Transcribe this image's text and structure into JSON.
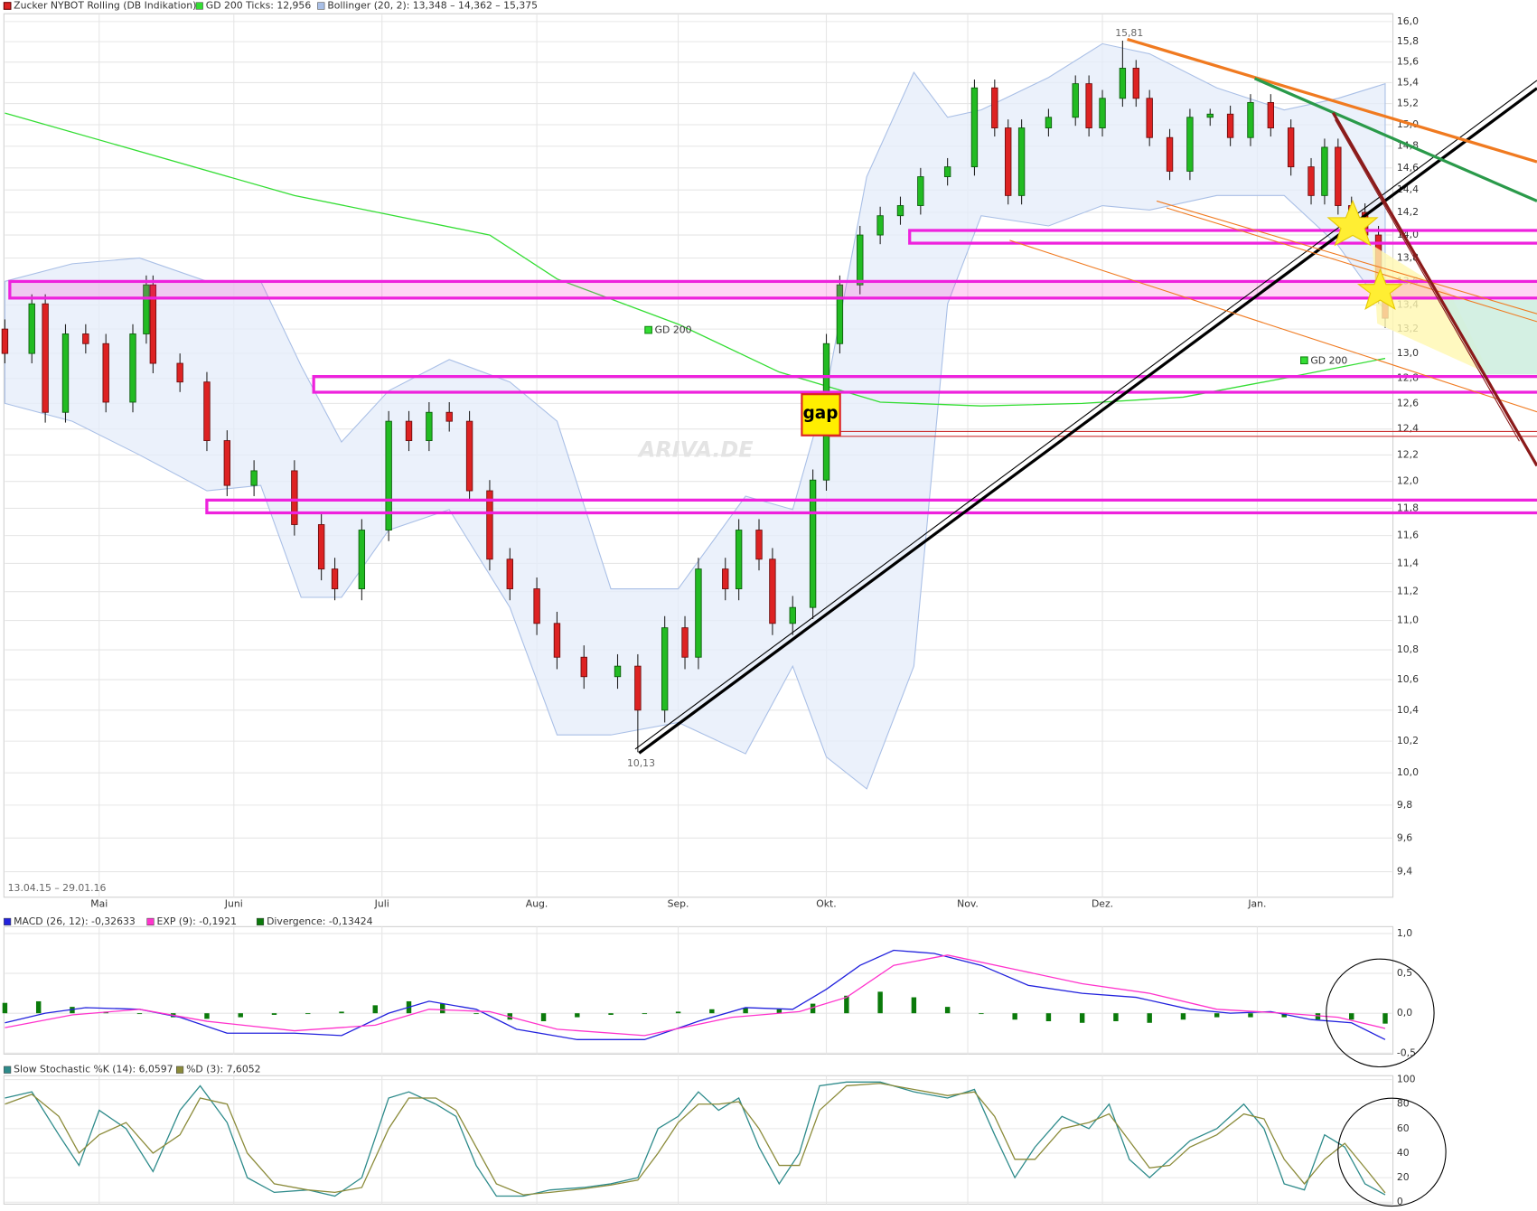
{
  "chart_data": [
    {
      "type": "candlestick",
      "title": "Zucker NYBOT Rolling (DB Indikation)",
      "period": "13.04.15 – 29.01.16",
      "watermark": "ARIVA.DE",
      "annotations": [
        "15,81",
        "10,13",
        "gap",
        "GD 200",
        "GD 200"
      ],
      "log": true,
      "grid": true,
      "colors": {
        "up": "#22bb22",
        "down": "#dd2222"
      },
      "xlim": [
        0,
        206
      ],
      "xticks": [
        {
          "value": 14,
          "label": "Mai"
        },
        {
          "value": 34,
          "label": "Juni"
        },
        {
          "value": 56,
          "label": "Juli"
        },
        {
          "value": 79,
          "label": "Aug."
        },
        {
          "value": 100,
          "label": "Sep."
        },
        {
          "value": 122,
          "label": "Okt."
        },
        {
          "value": 143,
          "label": "Nov."
        },
        {
          "value": 163,
          "label": "Dez."
        },
        {
          "value": 186,
          "label": "Jan."
        }
      ],
      "ylim": [
        9.4,
        16.0
      ],
      "yticks": [
        {
          "value": 9.4,
          "label": "9,4"
        },
        {
          "value": 9.6,
          "label": "9,6"
        },
        {
          "value": 9.8,
          "label": "9,8"
        },
        {
          "value": 10.0,
          "label": "10,0"
        },
        {
          "value": 10.2,
          "label": "10,2"
        },
        {
          "value": 10.4,
          "label": "10,4"
        },
        {
          "value": 10.6,
          "label": "10,6"
        },
        {
          "value": 10.8,
          "label": "10,8"
        },
        {
          "value": 11.0,
          "label": "11,0"
        },
        {
          "value": 11.2,
          "label": "11,2"
        },
        {
          "value": 11.4,
          "label": "11,4"
        },
        {
          "value": 11.6,
          "label": "11,6"
        },
        {
          "value": 11.8,
          "label": "11,8"
        },
        {
          "value": 12.0,
          "label": "12,0"
        },
        {
          "value": 12.2,
          "label": "12,2"
        },
        {
          "value": 12.4,
          "label": "12,4"
        },
        {
          "value": 12.6,
          "label": "12,6"
        },
        {
          "value": 12.8,
          "label": "12,8"
        },
        {
          "value": 13.0,
          "label": "13,0"
        },
        {
          "value": 13.2,
          "label": "13,2"
        },
        {
          "value": 13.4,
          "label": "13,4"
        },
        {
          "value": 13.6,
          "label": "13,6"
        },
        {
          "value": 13.8,
          "label": "13,8"
        },
        {
          "value": 14.0,
          "label": "14,0"
        },
        {
          "value": 14.2,
          "label": "14,2"
        },
        {
          "value": 14.4,
          "label": "14,4"
        },
        {
          "value": 14.6,
          "label": "14,6"
        },
        {
          "value": 14.8,
          "label": "14,8"
        },
        {
          "value": 15.0,
          "label": "15,0"
        },
        {
          "value": 15.2,
          "label": "15,2"
        },
        {
          "value": 15.4,
          "label": "15,4"
        },
        {
          "value": 15.6,
          "label": "15,6"
        },
        {
          "value": 15.8,
          "label": "15,8"
        },
        {
          "value": 16.0,
          "label": "16,0"
        }
      ],
      "x": [
        0,
        4,
        6,
        9,
        12,
        15,
        19,
        21,
        22,
        26,
        30,
        33,
        37,
        43,
        47,
        49,
        53,
        57,
        60,
        63,
        66,
        69,
        72,
        75,
        79,
        82,
        86,
        91,
        94,
        98,
        101,
        103,
        107,
        109,
        112,
        114,
        117,
        120,
        122,
        124,
        127,
        130,
        133,
        136,
        140,
        144,
        147,
        149,
        151,
        155,
        159,
        161,
        163,
        166,
        168,
        170,
        173,
        176,
        179,
        182,
        185,
        188,
        191,
        194,
        196,
        198,
        200,
        202,
        204,
        205
      ],
      "open": [
        13.2,
        13.0,
        13.41,
        12.53,
        13.16,
        13.08,
        12.61,
        13.16,
        13.57,
        12.92,
        12.77,
        12.31,
        11.97,
        12.08,
        11.68,
        11.36,
        11.22,
        11.64,
        12.46,
        12.31,
        12.53,
        12.46,
        11.93,
        11.43,
        11.22,
        10.98,
        10.75,
        10.62,
        10.69,
        10.4,
        10.95,
        10.75,
        11.36,
        11.22,
        11.64,
        11.43,
        10.98,
        11.09,
        12.01,
        13.08,
        13.57,
        14.0,
        14.17,
        14.26,
        14.52,
        14.61,
        15.35,
        14.97,
        14.35,
        14.97,
        15.07,
        15.39,
        14.97,
        15.25,
        15.54,
        15.25,
        14.88,
        14.57,
        15.07,
        15.1,
        14.88,
        15.21,
        14.97,
        14.61,
        14.35,
        14.79,
        14.26,
        14.2,
        14.0,
        13.49
      ],
      "high": [
        13.28,
        13.49,
        13.49,
        13.24,
        13.24,
        13.16,
        13.24,
        13.65,
        13.65,
        13.0,
        12.85,
        12.39,
        12.16,
        12.16,
        11.76,
        11.44,
        11.72,
        12.54,
        12.54,
        12.61,
        12.61,
        12.54,
        12.01,
        11.51,
        11.3,
        11.06,
        10.83,
        10.77,
        10.77,
        11.03,
        11.03,
        11.44,
        11.44,
        11.72,
        11.72,
        11.51,
        11.17,
        12.09,
        13.16,
        13.65,
        14.08,
        14.25,
        14.34,
        14.6,
        14.69,
        15.43,
        15.43,
        15.05,
        15.05,
        15.15,
        15.47,
        15.47,
        15.33,
        15.81,
        15.62,
        15.33,
        14.96,
        15.15,
        15.15,
        15.18,
        15.29,
        15.29,
        15.05,
        14.69,
        14.87,
        14.87,
        14.34,
        14.28,
        14.08,
        13.57
      ],
      "low": [
        12.92,
        12.92,
        12.45,
        12.45,
        13.0,
        12.53,
        12.53,
        13.08,
        12.84,
        12.69,
        12.23,
        11.89,
        11.89,
        11.6,
        11.28,
        11.14,
        11.14,
        11.56,
        12.23,
        12.23,
        12.38,
        11.85,
        11.35,
        11.14,
        10.9,
        10.67,
        10.54,
        10.54,
        10.13,
        10.32,
        10.67,
        10.67,
        11.14,
        11.14,
        11.35,
        10.9,
        10.9,
        11.01,
        11.93,
        13.0,
        13.49,
        13.92,
        14.09,
        14.18,
        14.44,
        14.53,
        14.89,
        14.27,
        14.27,
        14.89,
        14.99,
        14.89,
        14.89,
        15.17,
        15.17,
        14.8,
        14.49,
        14.49,
        14.99,
        14.8,
        14.8,
        14.89,
        14.53,
        14.27,
        14.27,
        14.18,
        14.12,
        13.92,
        13.41,
        13.21
      ],
      "close": [
        13.0,
        13.41,
        12.53,
        13.16,
        13.08,
        12.61,
        13.16,
        13.57,
        12.92,
        12.77,
        12.31,
        11.97,
        12.08,
        11.68,
        11.36,
        11.22,
        11.64,
        12.46,
        12.31,
        12.53,
        12.46,
        11.93,
        11.43,
        11.22,
        10.98,
        10.75,
        10.62,
        10.69,
        10.4,
        10.95,
        10.75,
        11.36,
        11.22,
        11.64,
        11.43,
        10.98,
        11.09,
        12.01,
        13.08,
        13.57,
        14.0,
        14.17,
        14.26,
        14.52,
        14.61,
        15.35,
        14.97,
        14.35,
        14.97,
        15.07,
        15.39,
        14.97,
        15.25,
        15.54,
        15.25,
        14.88,
        14.57,
        15.07,
        15.1,
        14.88,
        15.21,
        14.97,
        14.61,
        14.35,
        14.79,
        14.26,
        14.2,
        14.0,
        13.49,
        13.29
      ],
      "series": [
        {
          "name": "GD 200 Ticks: 12,956",
          "type": "line",
          "color": "#33dd33",
          "x": [
            0,
            43,
            72,
            82,
            100,
            115,
            130,
            145,
            160,
            175,
            190,
            205
          ],
          "values": [
            15.11,
            14.35,
            14.0,
            13.62,
            13.24,
            12.85,
            12.61,
            12.58,
            12.6,
            12.65,
            12.8,
            12.96
          ]
        },
        {
          "name": "Bollinger (20, 2): 13,348 – 14,362 – 15,375",
          "type": "band",
          "color": "#a9bfe6",
          "x": [
            0,
            10,
            20,
            30,
            38,
            44,
            50,
            57,
            66,
            75,
            82,
            90,
            100,
            110,
            117,
            122,
            128,
            135,
            140,
            145,
            155,
            163,
            170,
            180,
            190,
            198,
            205
          ],
          "upper": [
            13.6,
            13.75,
            13.8,
            13.6,
            13.6,
            12.9,
            12.3,
            12.7,
            12.95,
            12.77,
            12.46,
            11.22,
            11.22,
            11.89,
            11.79,
            12.7,
            14.52,
            15.5,
            15.07,
            15.14,
            15.45,
            15.78,
            15.68,
            15.35,
            15.14,
            15.25,
            15.39
          ],
          "lower": [
            12.6,
            12.46,
            12.2,
            11.93,
            11.97,
            11.16,
            11.16,
            11.64,
            11.79,
            11.09,
            10.24,
            10.24,
            10.32,
            10.12,
            10.69,
            10.1,
            9.9,
            10.69,
            13.41,
            14.17,
            14.08,
            14.26,
            14.22,
            14.35,
            14.35,
            13.91,
            13.35
          ]
        }
      ]
    },
    {
      "type": "line",
      "ylim": [
        -0.5,
        1.0
      ],
      "yticks": [
        {
          "value": 1.0,
          "label": "1,0"
        },
        {
          "value": 0.5,
          "label": "0,5"
        },
        {
          "value": 0.0,
          "label": "0,0"
        },
        {
          "value": -0.5,
          "label": "-0,5"
        }
      ],
      "series": [
        {
          "name": "MACD (26, 12): -0,32633",
          "type": "line",
          "color": "#2222dd",
          "x": [
            0,
            6,
            12,
            20,
            26,
            33,
            43,
            50,
            57,
            63,
            70,
            76,
            85,
            95,
            103,
            110,
            117,
            122,
            127,
            132,
            138,
            145,
            152,
            160,
            168,
            176,
            182,
            188,
            194,
            200,
            205
          ],
          "values": [
            -0.12,
            0,
            0.07,
            0.05,
            -0.05,
            -0.25,
            -0.25,
            -0.28,
            0,
            0.15,
            0.05,
            -0.2,
            -0.33,
            -0.33,
            -0.1,
            0.07,
            0.05,
            0.3,
            0.6,
            0.79,
            0.75,
            0.6,
            0.35,
            0.25,
            0.2,
            0.05,
            0,
            0.02,
            -0.08,
            -0.12,
            -0.33
          ]
        },
        {
          "name": "EXP (9): -0,1921",
          "type": "line",
          "color": "#ff33cc",
          "x": [
            0,
            10,
            20,
            30,
            43,
            55,
            63,
            72,
            82,
            95,
            108,
            118,
            125,
            132,
            140,
            150,
            160,
            170,
            180,
            190,
            198,
            205
          ],
          "values": [
            -0.18,
            -0.02,
            0.05,
            -0.1,
            -0.22,
            -0.15,
            0.05,
            0.02,
            -0.2,
            -0.28,
            -0.05,
            0.02,
            0.2,
            0.6,
            0.73,
            0.55,
            0.37,
            0.25,
            0.05,
            0,
            -0.05,
            -0.19
          ]
        },
        {
          "name": "Divergence: -0,13424",
          "type": "bar",
          "color": "#0a7a0a",
          "x": [
            0,
            5,
            10,
            15,
            20,
            25,
            30,
            35,
            40,
            45,
            50,
            55,
            60,
            65,
            70,
            75,
            80,
            85,
            90,
            95,
            100,
            105,
            110,
            115,
            120,
            125,
            130,
            135,
            140,
            145,
            150,
            155,
            160,
            165,
            170,
            175,
            180,
            185,
            190,
            195,
            200,
            205
          ],
          "values": [
            0.13,
            0.15,
            0.08,
            0.02,
            0.0,
            -0.05,
            -0.07,
            -0.05,
            -0.02,
            0.0,
            0.02,
            0.1,
            0.15,
            0.12,
            0.0,
            -0.08,
            -0.1,
            -0.05,
            -0.02,
            0.0,
            0.02,
            0.05,
            0.07,
            0.05,
            0.12,
            0.22,
            0.27,
            0.2,
            0.08,
            0.0,
            -0.08,
            -0.1,
            -0.12,
            -0.1,
            -0.12,
            -0.08,
            -0.05,
            -0.05,
            -0.05,
            -0.08,
            -0.08,
            -0.13
          ]
        }
      ]
    },
    {
      "type": "line",
      "ylim": [
        0,
        100
      ],
      "yticks": [
        0,
        20,
        40,
        60,
        80,
        100
      ],
      "series": [
        {
          "name": "Slow Stochastic %K (14): 6,0597",
          "type": "line",
          "color": "#2e8b8b",
          "x": [
            0,
            4,
            8,
            11,
            14,
            18,
            22,
            26,
            29,
            33,
            36,
            40,
            45,
            49,
            53,
            57,
            60,
            64,
            67,
            70,
            73,
            77,
            81,
            86,
            90,
            94,
            97,
            100,
            103,
            106,
            109,
            112,
            115,
            118,
            121,
            125,
            130,
            135,
            140,
            144,
            147,
            150,
            153,
            157,
            161,
            164,
            167,
            170,
            173,
            176,
            180,
            184,
            187,
            190,
            193,
            196,
            199,
            202,
            205
          ],
          "values": [
            85,
            90,
            55,
            30,
            75,
            60,
            25,
            75,
            95,
            65,
            20,
            8,
            10,
            5,
            20,
            85,
            90,
            80,
            70,
            30,
            5,
            5,
            10,
            12,
            15,
            20,
            60,
            70,
            90,
            75,
            85,
            45,
            15,
            40,
            95,
            98,
            98,
            90,
            85,
            92,
            55,
            20,
            45,
            70,
            60,
            80,
            35,
            20,
            35,
            50,
            60,
            80,
            60,
            15,
            10,
            55,
            45,
            15,
            6
          ]
        },
        {
          "name": "%D (3): 7,6052",
          "type": "line",
          "color": "#8b8b3a",
          "x": [
            0,
            4,
            8,
            11,
            14,
            18,
            22,
            26,
            29,
            33,
            36,
            40,
            45,
            49,
            53,
            57,
            60,
            64,
            67,
            70,
            73,
            77,
            81,
            86,
            90,
            94,
            97,
            100,
            103,
            106,
            109,
            112,
            115,
            118,
            121,
            125,
            130,
            135,
            140,
            144,
            147,
            150,
            153,
            157,
            161,
            164,
            167,
            170,
            173,
            176,
            180,
            184,
            187,
            190,
            193,
            196,
            199,
            202,
            205
          ],
          "values": [
            80,
            88,
            70,
            40,
            55,
            65,
            40,
            55,
            85,
            80,
            40,
            15,
            10,
            8,
            12,
            60,
            85,
            85,
            75,
            45,
            15,
            6,
            8,
            11,
            14,
            18,
            40,
            65,
            80,
            80,
            82,
            60,
            30,
            30,
            75,
            95,
            97,
            92,
            87,
            90,
            70,
            35,
            35,
            60,
            65,
            72,
            50,
            28,
            30,
            45,
            55,
            72,
            68,
            35,
            15,
            35,
            48,
            28,
            7.6
          ]
        }
      ]
    }
  ]
}
